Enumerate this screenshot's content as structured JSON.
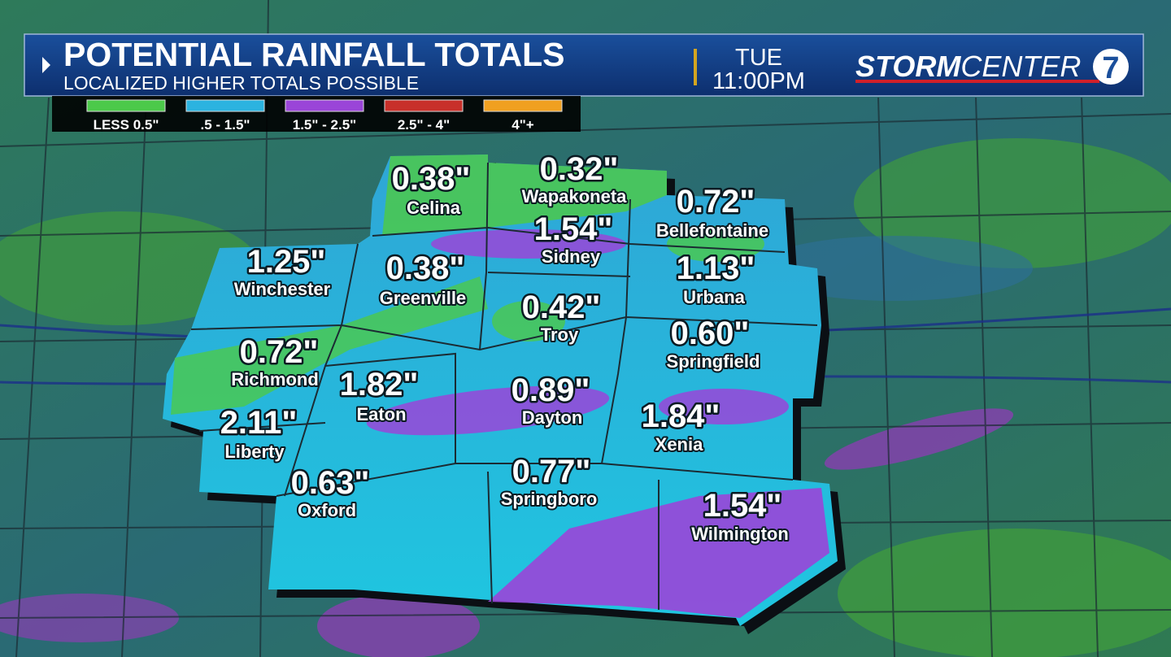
{
  "header": {
    "title": "POTENTIAL RAINFALL TOTALS",
    "subtitle": "LOCALIZED HIGHER TOTALS POSSIBLE",
    "day": "TUE",
    "time": "11:00PM",
    "logo": {
      "bold": "STORM",
      "light": "CENTER",
      "number": "7"
    }
  },
  "legend": [
    {
      "label": "LESS 0.5\"",
      "color": "#4cc94a"
    },
    {
      "label": ".5 - 1.5\"",
      "color": "#2bb3e0"
    },
    {
      "label": "1.5\" - 2.5\"",
      "color": "#9a45d8"
    },
    {
      "label": "2.5\" - 4\"",
      "color": "#c8302a"
    },
    {
      "label": "4\"+",
      "color": "#f0a020"
    }
  ],
  "cities": [
    {
      "name": "Celina",
      "total": "0.38\""
    },
    {
      "name": "Wapakoneta",
      "total": "0.32\""
    },
    {
      "name": "Bellefontaine",
      "total": "0.72\""
    },
    {
      "name": "Sidney",
      "total": "1.54\""
    },
    {
      "name": "Winchester",
      "total": "1.25\""
    },
    {
      "name": "Greenville",
      "total": "0.38\""
    },
    {
      "name": "Urbana",
      "total": "1.13\""
    },
    {
      "name": "Troy",
      "total": "0.42\""
    },
    {
      "name": "Richmond",
      "total": "0.72\""
    },
    {
      "name": "Springfield",
      "total": "0.60\""
    },
    {
      "name": "Eaton",
      "total": "1.82\""
    },
    {
      "name": "Dayton",
      "total": "0.89\""
    },
    {
      "name": "Xenia",
      "total": "1.84\""
    },
    {
      "name": "Liberty",
      "total": "2.11\""
    },
    {
      "name": "Oxford",
      "total": "0.63\""
    },
    {
      "name": "Springboro",
      "total": "0.77\""
    },
    {
      "name": "Wilmington",
      "total": "1.54\""
    }
  ]
}
